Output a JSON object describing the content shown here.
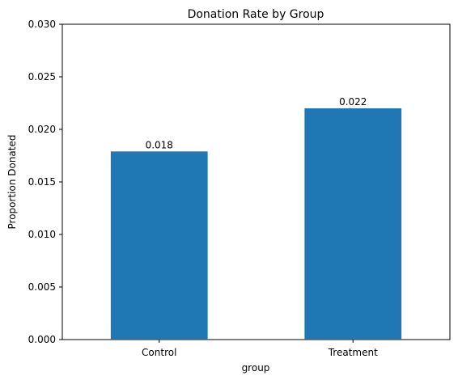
{
  "chart_data": {
    "type": "bar",
    "title": "Donation Rate by Group",
    "xlabel": "group",
    "ylabel": "Proportion Donated",
    "categories": [
      "Control",
      "Treatment"
    ],
    "values": [
      0.0179,
      0.022
    ],
    "data_labels": [
      "0.018",
      "0.022"
    ],
    "ylim": [
      0,
      0.03
    ],
    "yticks": [
      0.0,
      0.005,
      0.01,
      0.015,
      0.02,
      0.025,
      0.03
    ],
    "ytick_labels": [
      "0.000",
      "0.005",
      "0.010",
      "0.015",
      "0.020",
      "0.025",
      "0.030"
    ],
    "bar_color": "#1f77b4",
    "grid": false,
    "legend": "none"
  }
}
